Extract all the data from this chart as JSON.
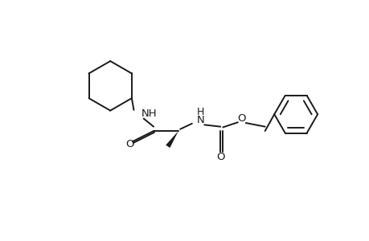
{
  "background_color": "#ffffff",
  "line_color": "#1a1a1a",
  "line_width": 1.4,
  "font_size": 9.5,
  "fig_width": 4.6,
  "fig_height": 3.0,
  "dpi": 100,
  "xlim": [
    0,
    4.6
  ],
  "ylim": [
    0,
    3.0
  ]
}
